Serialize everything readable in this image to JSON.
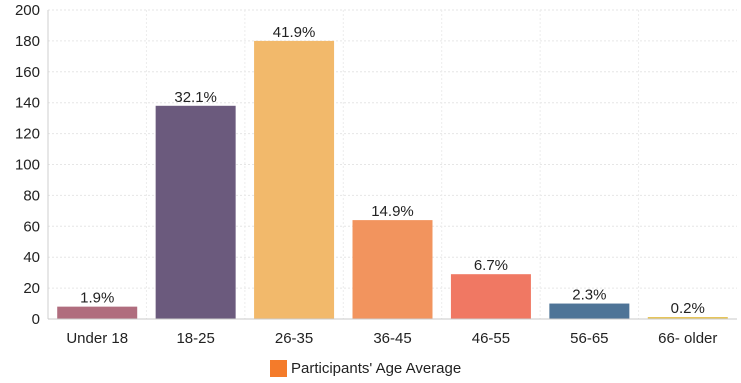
{
  "chart_data": {
    "type": "bar",
    "categories": [
      "Under 18",
      "18-25",
      "26-35",
      "36-45",
      "46-55",
      "56-65",
      "66- older"
    ],
    "values": [
      8,
      138,
      180,
      64,
      29,
      10,
      1
    ],
    "data_labels": [
      "1.9%",
      "32.1%",
      "41.9%",
      "14.9%",
      "6.7%",
      "2.3%",
      "0.2%"
    ],
    "bar_colors": [
      "#b06d7e",
      "#6b5a7d",
      "#f2b96b",
      "#f2945e",
      "#f07863",
      "#4e7497",
      "#e6c55a"
    ],
    "series": [
      {
        "name": "Participants' Age Average",
        "values": [
          8,
          138,
          180,
          64,
          29,
          10,
          1
        ]
      }
    ],
    "ylim": [
      0,
      200
    ],
    "yticks": [
      "0",
      "20",
      "40",
      "60",
      "80",
      "100",
      "120",
      "140",
      "160",
      "180",
      "200"
    ],
    "grid": true,
    "legend_position": "bottom-center",
    "legend_color": "#f47b2a"
  }
}
